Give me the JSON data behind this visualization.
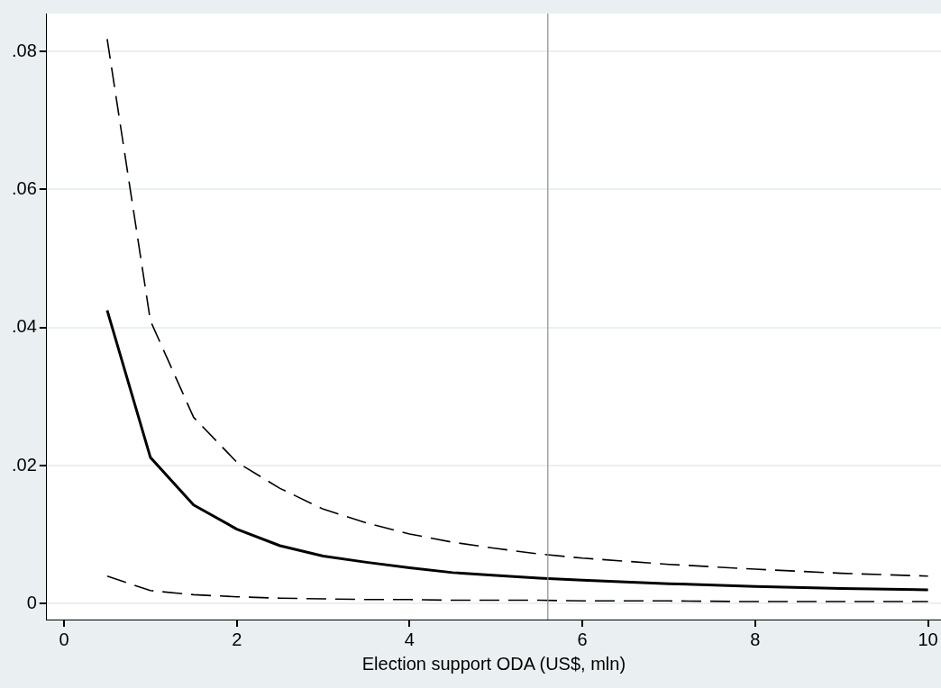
{
  "chart_data": {
    "type": "line",
    "xlabel": "Election support ODA (US$, mln)",
    "x": [
      0.5,
      1,
      1.5,
      2,
      2.5,
      3,
      3.5,
      4,
      4.5,
      5,
      5.5,
      6,
      7,
      8,
      9,
      10
    ],
    "series": [
      {
        "color": "#000000",
        "line_style": "solid",
        "values": [
          0.0425,
          0.0212,
          0.0143,
          0.0108,
          0.0084,
          0.0069,
          0.006,
          0.0052,
          0.0045,
          0.0041,
          0.0037,
          0.0034,
          0.0029,
          0.0025,
          0.0022,
          0.002
        ]
      },
      {
        "color": "#000000",
        "line_style": "dashed",
        "values": [
          0.0818,
          0.041,
          0.027,
          0.0205,
          0.0167,
          0.0137,
          0.0117,
          0.0101,
          0.0089,
          0.008,
          0.0072,
          0.0066,
          0.0057,
          0.005,
          0.0044,
          0.004
        ]
      },
      {
        "color": "#000000",
        "line_style": "dashed",
        "values": [
          0.004,
          0.0019,
          0.0013,
          0.001,
          0.0008,
          0.0007,
          0.0006,
          0.0006,
          0.0005,
          0.0005,
          0.0005,
          0.0004,
          0.0004,
          0.0003,
          0.0003,
          0.0003
        ]
      }
    ],
    "xlim": [
      -0.2,
      10.15
    ],
    "xticks": [
      0,
      2,
      4,
      6,
      8,
      10
    ],
    "ylim": [
      -0.0023,
      0.0855
    ],
    "yticks": [
      0,
      {
        "value": 0.02,
        "label": ".02"
      },
      {
        "value": 0.04,
        "label": ".04"
      },
      {
        "value": 0.06,
        "label": ".06"
      },
      {
        "value": 0.08,
        "label": ".08"
      }
    ],
    "grid": "y",
    "legend": false,
    "marker": "none",
    "ref_lines": [
      {
        "axis": "x",
        "value": 5.6,
        "color": "#8c8c8c"
      }
    ]
  }
}
